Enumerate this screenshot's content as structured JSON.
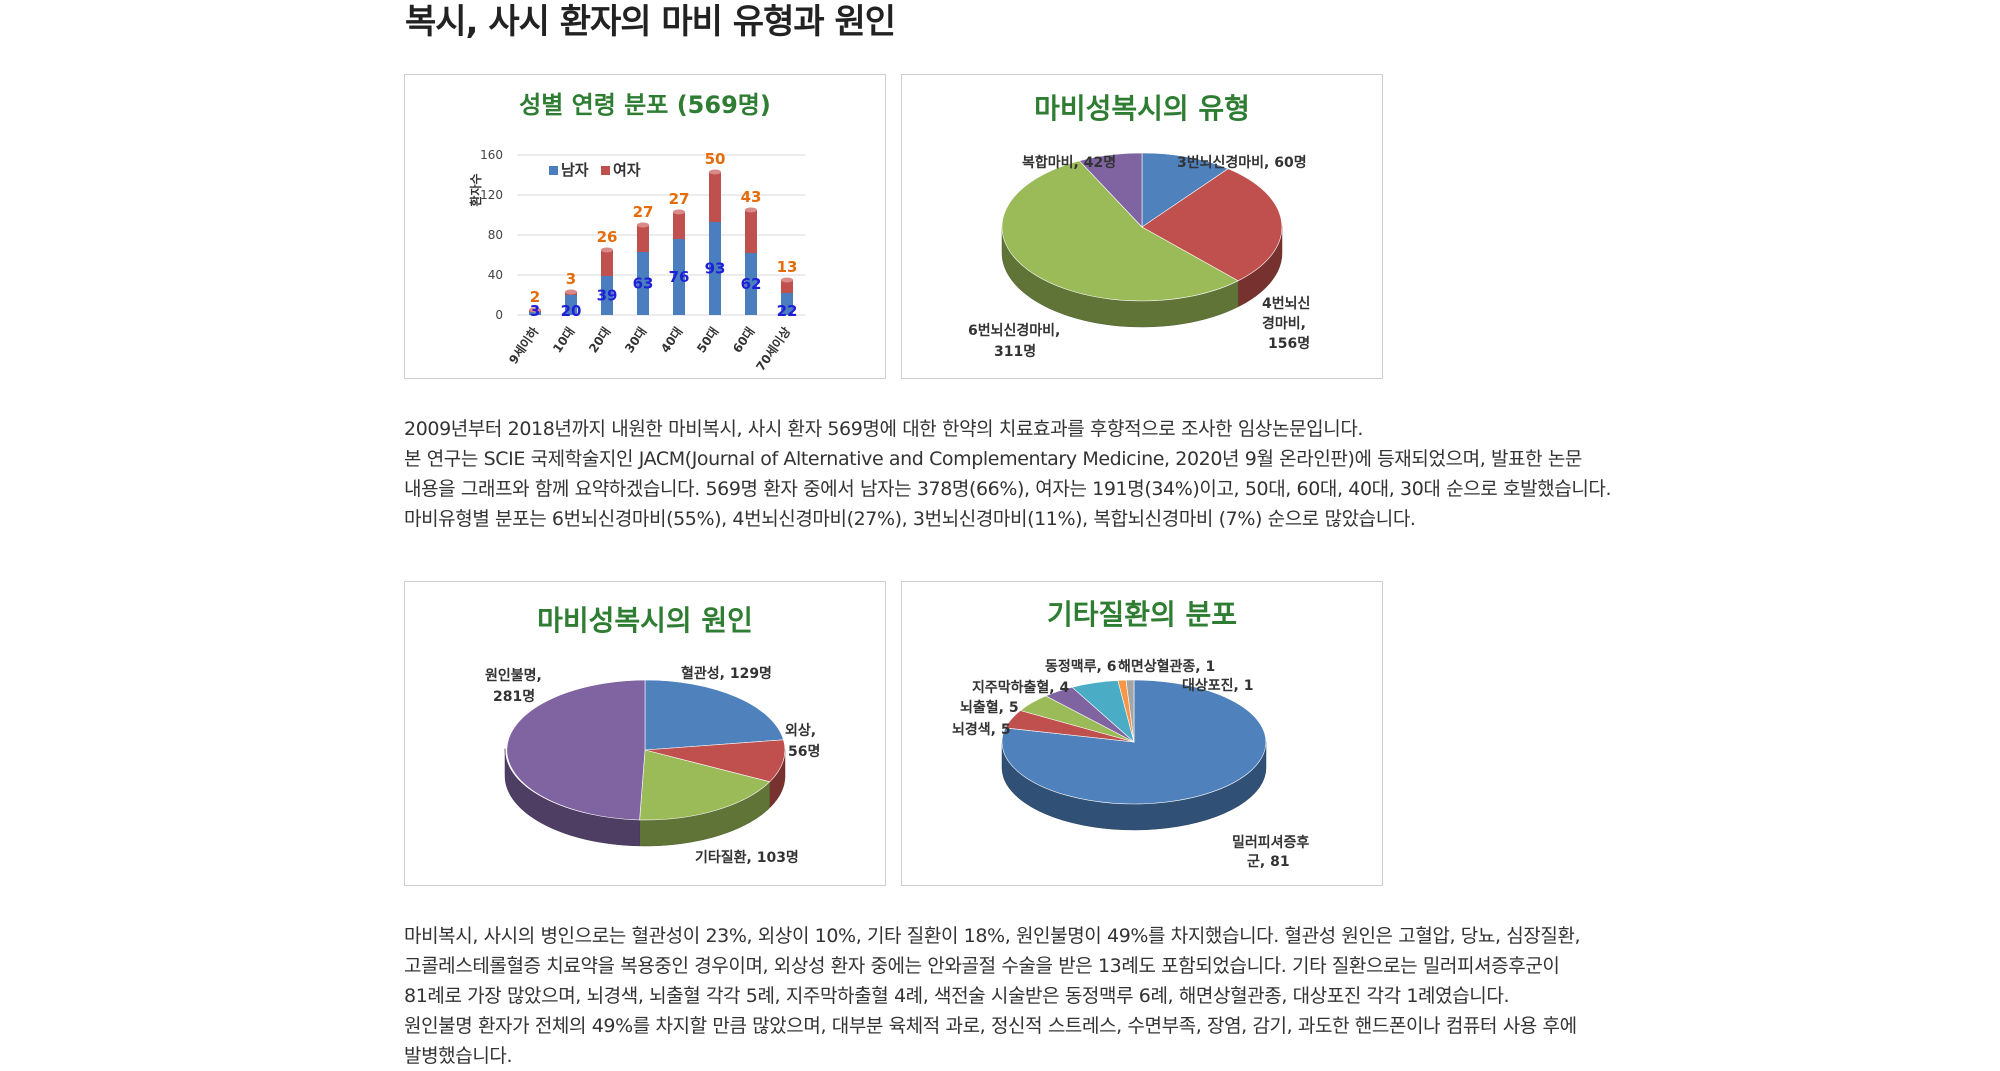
{
  "page": {
    "title": "복시, 사시 환자의 마비 유형과 원인"
  },
  "paragraph1": [
    "2009년부터 2018년까지 내원한 마비복시, 사시 환자 569명에 대한 한약의 치료효과를 후향적으로 조사한 임상논문입니다.",
    "본 연구는 SCIE 국제학술지인 JACM(Journal of Alternative and Complementary Medicine, 2020년 9월 온라인판)에 등재되었으며, 발표한 논문",
    "내용을 그래프와 함께 요약하겠습니다. 569명 환자 중에서 남자는 378명(66%), 여자는 191명(34%)이고, 50대, 60대, 40대, 30대 순으로 호발했습니다.",
    "마비유형별 분포는 6번뇌신경마비(55%),  4번뇌신경마비(27%), 3번뇌신경마비(11%), 복합뇌신경마비 (7%) 순으로 많았습니다."
  ],
  "paragraph2": [
    "마비복시, 사시의 병인으로는 혈관성이 23%, 외상이 10%, 기타 질환이 18%, 원인불명이 49%를 차지했습니다. 혈관성 원인은 고혈압, 당뇨, 심장질환,",
    "고콜레스테롤혈증 치료약을 복용중인 경우이며, 외상성 환자 중에는 안와골절 수술을 받은 13례도 포함되었습니다. 기타 질환으로는 밀러피셔증후군이",
    "81례로 가장 많았으며, 뇌경색, 뇌출혈 각각 5례, 지주막하출혈 4례, 색전술 시술받은 동정맥루 6례, 해면상혈관종, 대상포진 각각 1례였습니다.",
    "원인불명 환자가 전체의 49%를 차지할 만큼 많았으며, 대부분 육체적 과로, 정신적 스트레스, 수면부족, 장염, 감기, 과도한 핸드폰이나 컴퓨터 사용 후에",
    "발병했습니다."
  ],
  "colors": {
    "male": "#4a7ebf",
    "female": "#c0504d",
    "male_label": "#1f1fd6",
    "female_label": "#e46c0a",
    "blue": "#4f81bd",
    "red": "#c0504d",
    "green": "#9bbb59",
    "purple": "#8064a2",
    "teal": "#4bacc6",
    "orange": "#f79646",
    "title_green": "#2e7d32"
  },
  "chart_data": [
    {
      "type": "bar",
      "title": "성별 연령 분포 (569명)",
      "ylabel": "환자수",
      "ylim": [
        0,
        160
      ],
      "yticks": [
        "0",
        "40",
        "80",
        "120",
        "160"
      ],
      "categories": [
        "9세이하",
        "10대",
        "20대",
        "30대",
        "40대",
        "50대",
        "60대",
        "70세이상"
      ],
      "series": [
        {
          "name": "남자",
          "values": [
            3,
            20,
            39,
            63,
            76,
            93,
            62,
            22
          ]
        },
        {
          "name": "여자",
          "values": [
            2,
            3,
            26,
            27,
            27,
            50,
            43,
            13
          ]
        }
      ],
      "stacked": true,
      "legend": "top-left"
    },
    {
      "type": "pie",
      "title": "마비성복시의 유형",
      "slices": [
        {
          "label": "3번뇌신경마비, 60명",
          "value": 60
        },
        {
          "label": "4번뇌신경마비, 156명",
          "value": 156
        },
        {
          "label": "6번뇌신경마비, 311명",
          "value": 311
        },
        {
          "label": "복합마비, 42명",
          "value": 42
        }
      ]
    },
    {
      "type": "pie",
      "title": "마비성복시의 원인",
      "slices": [
        {
          "label": "혈관성, 129명",
          "value": 129
        },
        {
          "label": "외상, 56명",
          "value": 56
        },
        {
          "label": "기타질환, 103명",
          "value": 103
        },
        {
          "label": "원인불명, 281명",
          "value": 281
        }
      ]
    },
    {
      "type": "pie",
      "title": "기타질환의 분포",
      "slices": [
        {
          "label": "밀러피셔증후군, 81",
          "value": 81
        },
        {
          "label": "뇌경색, 5",
          "value": 5
        },
        {
          "label": "뇌출혈, 5",
          "value": 5
        },
        {
          "label": "지주막하출혈, 4",
          "value": 4
        },
        {
          "label": "동정맥루, 6",
          "value": 6
        },
        {
          "label": "해면상혈관종, 1",
          "value": 1
        },
        {
          "label": "대상포진, 1",
          "value": 1
        }
      ]
    }
  ]
}
